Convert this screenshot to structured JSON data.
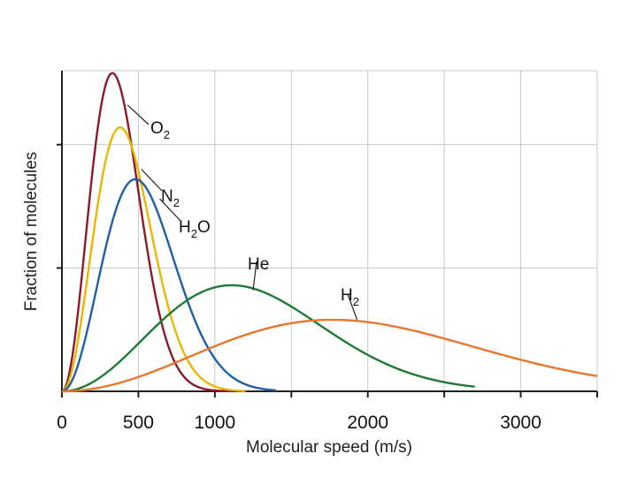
{
  "chart_data": {
    "type": "line",
    "title": "",
    "xlabel": "Molecular speed (m/s)",
    "ylabel": "Fraction of molecules",
    "xlim": [
      0,
      3500
    ],
    "ylim": [
      0,
      1.3
    ],
    "grid": true,
    "x_ticks": [
      0,
      500,
      1000,
      1500,
      2000,
      2500,
      3000,
      3500
    ],
    "x_tick_labels": [
      "0",
      "500",
      "1000",
      "",
      "2000",
      "",
      "3000",
      ""
    ],
    "y_grid": [
      0.5,
      1.0
    ],
    "series": [
      {
        "name": "O2",
        "label_main": "O",
        "label_sub": "2",
        "color": "#8b1a2b",
        "peak_speed": 330,
        "peak_fraction": 1.29,
        "x_max": 1100
      },
      {
        "name": "N2",
        "label_main": "N",
        "label_sub": "2",
        "color": "#e8b800",
        "peak_speed": 380,
        "peak_fraction": 1.07,
        "x_max": 1200
      },
      {
        "name": "H2O",
        "label_main": "H",
        "label_sub": "2",
        "label_tail": "O",
        "color": "#1f5fa8",
        "peak_speed": 480,
        "peak_fraction": 0.86,
        "x_max": 1400
      },
      {
        "name": "He",
        "label_main": "He",
        "label_sub": "",
        "color": "#1f7a33",
        "peak_speed": 1110,
        "peak_fraction": 0.43,
        "x_max": 2700
      },
      {
        "name": "H2",
        "label_main": "H",
        "label_sub": "2",
        "color": "#e8762d",
        "peak_speed": 1770,
        "peak_fraction": 0.29,
        "x_max": 3500
      }
    ]
  }
}
